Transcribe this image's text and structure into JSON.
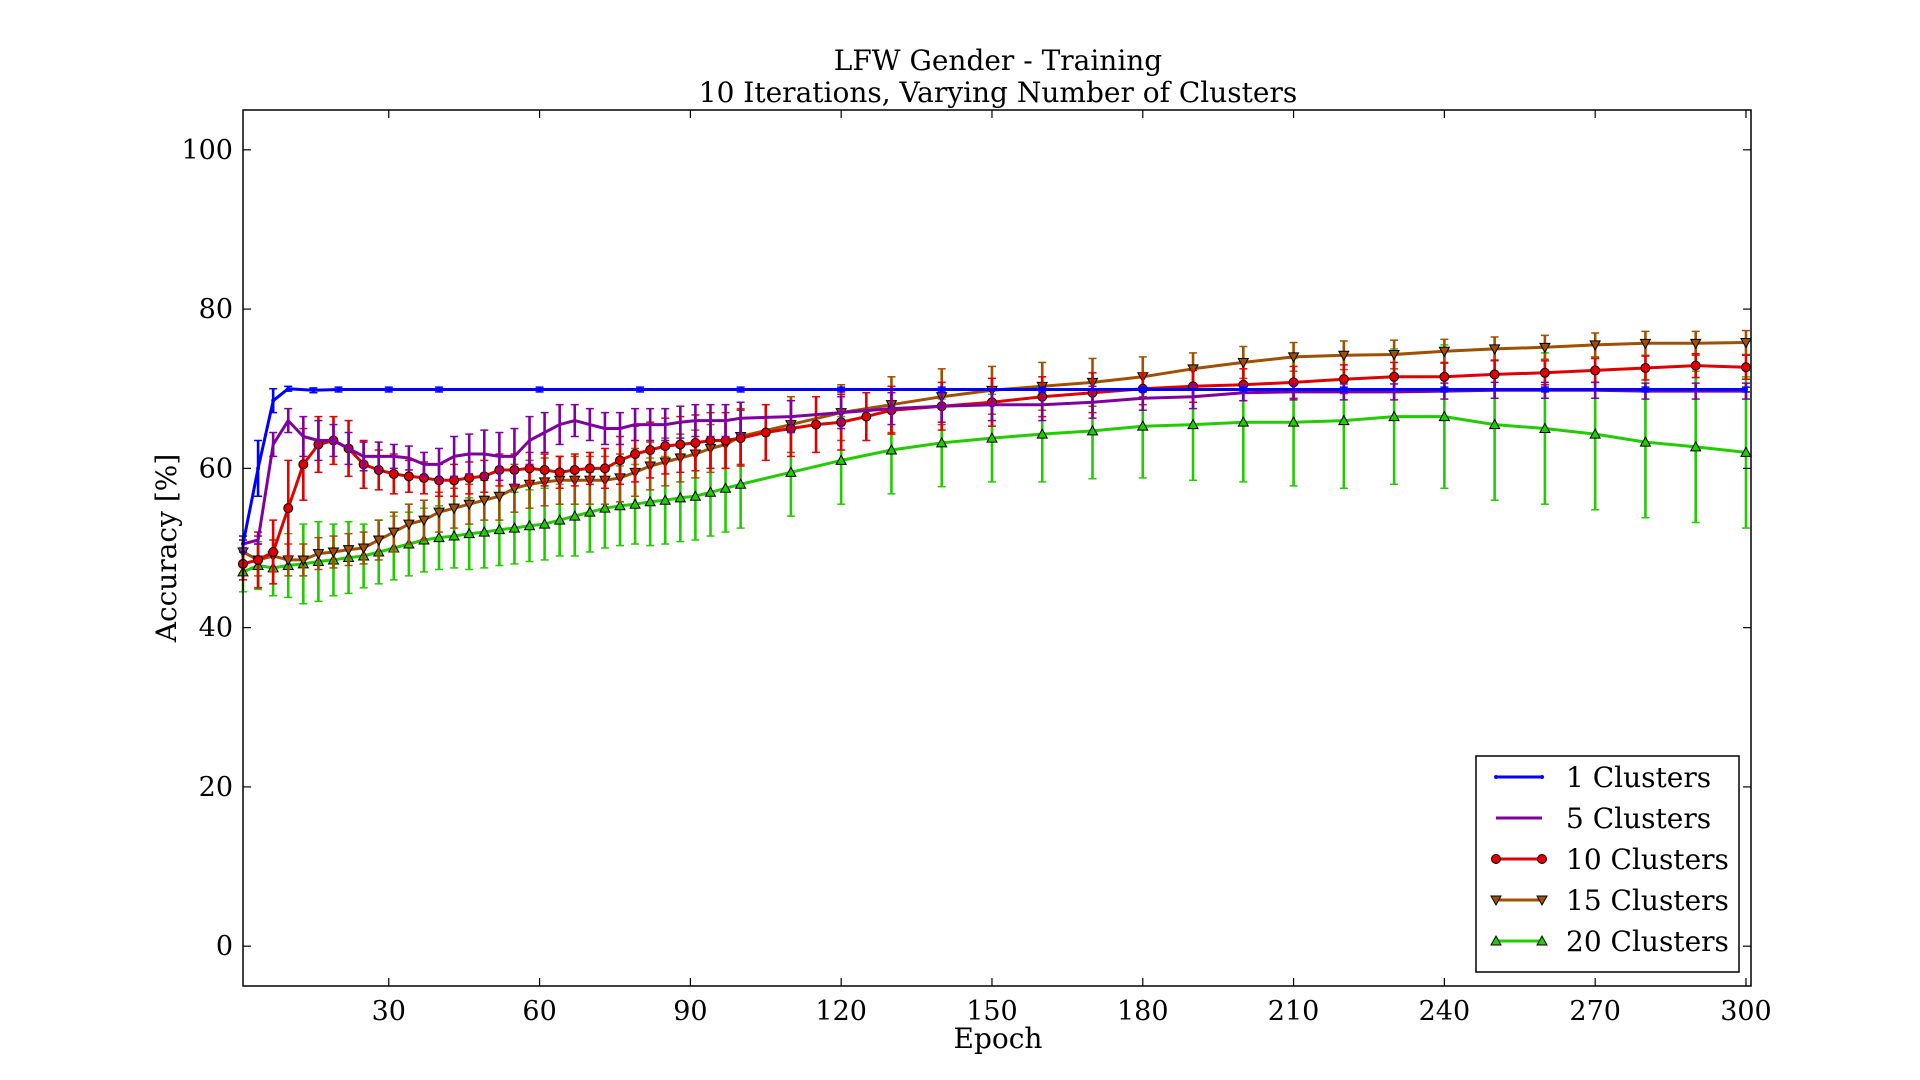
{
  "chart_data": {
    "type": "line",
    "title": "LFW Gender - Training",
    "subtitle": "10 Iterations, Varying Number of Clusters",
    "xlabel": "Epoch",
    "ylabel": "Accuracy [%]",
    "xlim": [
      1,
      301
    ],
    "ylim": [
      -5,
      105
    ],
    "xticks": [
      30,
      60,
      90,
      120,
      150,
      180,
      210,
      240,
      270,
      300
    ],
    "yticks": [
      0,
      20,
      40,
      60,
      80,
      100
    ],
    "xtick_labels": [
      "30",
      "60",
      "90",
      "120",
      "150",
      "180",
      "210",
      "240",
      "270",
      "300"
    ],
    "ytick_labels": [
      "0",
      "20",
      "40",
      "60",
      "80",
      "100"
    ],
    "grid": false,
    "legend_position": "bottom-right",
    "series": [
      {
        "name": "1 Clusters",
        "color": "#0000ff",
        "marker": "point",
        "x": [
          1,
          4,
          7,
          10,
          15,
          20,
          30,
          40,
          60,
          80,
          100,
          120,
          140,
          160,
          180,
          200,
          220,
          240,
          260,
          280,
          300
        ],
        "y": [
          50.5,
          60,
          68.5,
          70,
          69.8,
          69.9,
          69.9,
          69.9,
          69.9,
          69.9,
          69.9,
          69.9,
          69.9,
          69.9,
          69.9,
          69.9,
          69.9,
          69.9,
          69.9,
          69.9,
          69.9
        ],
        "err": [
          1,
          3.5,
          1.5,
          0.3,
          0.3,
          0.3,
          0.3,
          0.3,
          0.3,
          0.3,
          0.3,
          0.3,
          0.3,
          0.3,
          0.3,
          0.3,
          0.3,
          0.3,
          0.3,
          0.3,
          0.3
        ]
      },
      {
        "name": "5 Clusters",
        "color": "#7f00a0",
        "marker": "none",
        "x": [
          1,
          4,
          7,
          10,
          13,
          16,
          19,
          22,
          25,
          28,
          31,
          34,
          37,
          40,
          43,
          46,
          49,
          52,
          55,
          58,
          61,
          64,
          67,
          70,
          73,
          76,
          79,
          82,
          85,
          88,
          91,
          94,
          97,
          100,
          110,
          120,
          130,
          140,
          150,
          160,
          170,
          180,
          190,
          200,
          210,
          220,
          230,
          240,
          250,
          260,
          270,
          280,
          290,
          300
        ],
        "y": [
          50.5,
          51,
          63,
          66,
          64,
          63.5,
          63.5,
          62.5,
          61.5,
          61.5,
          61.5,
          61.3,
          60.5,
          60.5,
          61.5,
          61.8,
          61.8,
          61.5,
          61.5,
          63.5,
          64.5,
          65.5,
          66,
          65.5,
          65,
          65,
          65.5,
          65.5,
          65.5,
          65.8,
          66,
          66,
          66,
          66.3,
          66.5,
          67,
          67.5,
          67.8,
          68,
          68,
          68.3,
          68.8,
          69,
          69.5,
          69.6,
          69.6,
          69.6,
          69.7,
          69.8,
          69.8,
          69.8,
          69.7,
          69.7,
          69.7
        ],
        "err": [
          0.5,
          0.5,
          1.5,
          1.5,
          2.5,
          2.5,
          2,
          2,
          1.8,
          1.8,
          1.5,
          1.5,
          1.5,
          2,
          2.5,
          2.5,
          3,
          3,
          3.5,
          3,
          2.5,
          2.5,
          2,
          2,
          2,
          2,
          2,
          2,
          2,
          2,
          2,
          2,
          2,
          2,
          2,
          2,
          2,
          2,
          2,
          2,
          2,
          1.5,
          1.5,
          1,
          1,
          1,
          1,
          1,
          1,
          1,
          1,
          1,
          1,
          1
        ]
      },
      {
        "name": "10 Clusters",
        "color": "#e00000",
        "marker": "circle",
        "x": [
          1,
          4,
          7,
          10,
          13,
          16,
          19,
          22,
          25,
          28,
          31,
          34,
          37,
          40,
          43,
          46,
          49,
          52,
          55,
          58,
          61,
          64,
          67,
          70,
          73,
          76,
          79,
          82,
          85,
          88,
          91,
          94,
          97,
          100,
          105,
          110,
          115,
          120,
          125,
          130,
          140,
          150,
          160,
          170,
          180,
          190,
          200,
          210,
          220,
          230,
          240,
          250,
          260,
          270,
          280,
          290,
          300
        ],
        "y": [
          48,
          48.5,
          49.5,
          55,
          60.5,
          63,
          63.5,
          62.5,
          60.5,
          59.8,
          59.3,
          59,
          58.8,
          58.5,
          58.5,
          58.8,
          59,
          59.8,
          59.8,
          60,
          59.8,
          59.5,
          59.8,
          60,
          60,
          61,
          61.8,
          62.3,
          62.8,
          63,
          63.2,
          63.5,
          63.5,
          63.8,
          64.5,
          65,
          65.5,
          65.8,
          66.5,
          67.3,
          67.8,
          68.3,
          69,
          69.5,
          70,
          70.3,
          70.5,
          70.8,
          71.2,
          71.5,
          71.5,
          71.8,
          72,
          72.3,
          72.6,
          72.9,
          72.7
        ],
        "err": [
          2,
          3.5,
          4,
          6,
          4.5,
          3.5,
          3,
          3.5,
          3,
          2.5,
          2.5,
          2,
          2,
          2,
          2,
          2,
          2,
          2,
          2,
          2,
          2,
          2,
          2,
          2,
          2.5,
          3,
          3.5,
          3.5,
          3.5,
          3.5,
          3.5,
          3.5,
          3.5,
          3.5,
          3.5,
          3.5,
          3.5,
          3.5,
          3,
          3,
          3,
          3,
          2.5,
          2.5,
          2,
          2,
          2,
          2,
          1.8,
          1.8,
          1.8,
          1.8,
          1.5,
          1.5,
          1.5,
          1.5,
          1.5
        ]
      },
      {
        "name": "15 Clusters",
        "color": "#a05000",
        "marker": "triangle-down",
        "x": [
          1,
          4,
          7,
          10,
          13,
          16,
          19,
          22,
          25,
          28,
          31,
          34,
          37,
          40,
          43,
          46,
          49,
          52,
          55,
          58,
          61,
          64,
          67,
          70,
          73,
          76,
          79,
          82,
          85,
          88,
          91,
          94,
          97,
          100,
          110,
          120,
          130,
          140,
          150,
          160,
          170,
          180,
          190,
          200,
          210,
          220,
          230,
          240,
          250,
          260,
          270,
          280,
          290,
          300
        ],
        "y": [
          49.5,
          48.5,
          49,
          48.5,
          48.5,
          49.3,
          49.5,
          49.8,
          50,
          51,
          52,
          53,
          53.5,
          54.5,
          55,
          55.5,
          56,
          56.5,
          57.5,
          58,
          58.3,
          58.5,
          58.5,
          58.5,
          58.5,
          58.8,
          59.5,
          60.3,
          60.8,
          61.3,
          61.8,
          62.5,
          63,
          64,
          65.5,
          67,
          68,
          69,
          69.8,
          70.3,
          70.8,
          71.5,
          72.5,
          73.3,
          74,
          74.2,
          74.3,
          74.7,
          75,
          75.2,
          75.5,
          75.7,
          75.7,
          75.8
        ],
        "err": [
          1.5,
          2,
          2,
          2,
          2,
          2,
          2,
          2,
          2,
          2.5,
          2.5,
          2.5,
          2.5,
          2.5,
          2.5,
          2.5,
          2.5,
          3,
          3,
          3,
          3,
          3,
          3,
          3,
          3,
          3,
          3,
          3,
          3,
          3,
          3,
          3,
          3,
          3.5,
          3.5,
          3.5,
          3.5,
          3.5,
          3,
          3,
          3,
          2.5,
          2,
          2,
          1.8,
          1.8,
          1.8,
          1.5,
          1.5,
          1.5,
          1.5,
          1.5,
          1.5,
          1.5
        ]
      },
      {
        "name": "20 Clusters",
        "color": "#22cc00",
        "marker": "triangle-up",
        "x": [
          1,
          4,
          7,
          10,
          13,
          16,
          19,
          22,
          25,
          28,
          31,
          34,
          37,
          40,
          43,
          46,
          49,
          52,
          55,
          58,
          61,
          64,
          67,
          70,
          73,
          76,
          79,
          82,
          85,
          88,
          91,
          94,
          97,
          100,
          110,
          120,
          130,
          140,
          150,
          160,
          170,
          180,
          190,
          200,
          210,
          220,
          230,
          240,
          250,
          260,
          270,
          280,
          290,
          300
        ],
        "y": [
          47,
          47.8,
          47.5,
          47.8,
          48,
          48.3,
          48.5,
          48.8,
          49,
          49.5,
          50,
          50.5,
          51,
          51.3,
          51.5,
          51.8,
          52,
          52.3,
          52.5,
          52.8,
          53,
          53.5,
          54,
          54.5,
          55,
          55.3,
          55.5,
          55.8,
          56,
          56.3,
          56.5,
          57,
          57.5,
          58,
          59.5,
          61,
          62.3,
          63.2,
          63.8,
          64.3,
          64.7,
          65.3,
          65.5,
          65.8,
          65.8,
          66,
          66.5,
          66.5,
          65.5,
          65,
          64.3,
          63.3,
          62.7,
          62
        ],
        "err": [
          2.5,
          3,
          3.5,
          4,
          5,
          5,
          4.5,
          4.5,
          4,
          4,
          4,
          4,
          4,
          4,
          4,
          4.5,
          4.5,
          4.5,
          4.5,
          4.5,
          4.5,
          4.5,
          5,
          5,
          5,
          5,
          5,
          5.5,
          5.5,
          5.5,
          5.5,
          5.5,
          5.5,
          5.5,
          5.5,
          5.5,
          5.5,
          5.5,
          5.5,
          6,
          6,
          6.5,
          7,
          7.5,
          8,
          8.5,
          8.5,
          9,
          9.5,
          9.5,
          9.5,
          9.5,
          9.5,
          9.5
        ]
      }
    ]
  }
}
